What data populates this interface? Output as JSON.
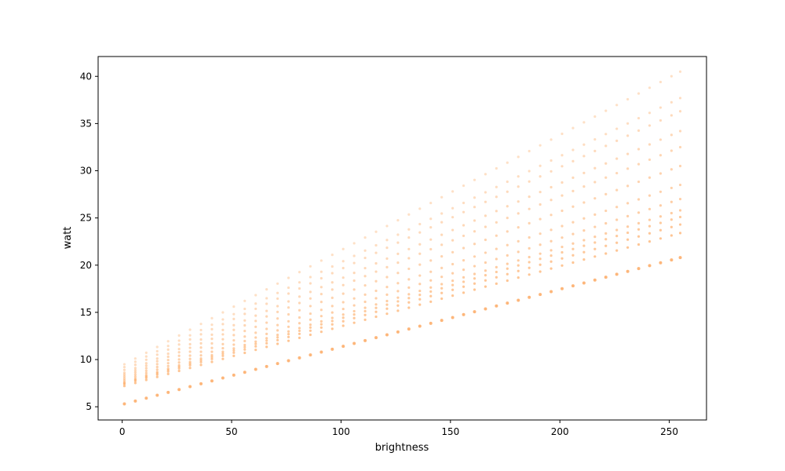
{
  "chart_data": {
    "type": "scatter",
    "title": "",
    "xlabel": "brightness",
    "ylabel": "watt",
    "xlim": [
      -11,
      267
    ],
    "ylim": [
      3.6,
      42.1
    ],
    "x_ticks": [
      0,
      50,
      100,
      150,
      200,
      250
    ],
    "y_ticks": [
      5,
      10,
      15,
      20,
      25,
      30,
      35,
      40
    ],
    "grid": false,
    "legend": "none",
    "color": "#fdae6b",
    "brightness_x": [
      1,
      6,
      11,
      16,
      21,
      26,
      31,
      36,
      41,
      46,
      51,
      56,
      61,
      66,
      71,
      76,
      81,
      86,
      91,
      96,
      101,
      106,
      111,
      116,
      121,
      126,
      131,
      136,
      141,
      146,
      151,
      156,
      161,
      166,
      171,
      176,
      181,
      186,
      191,
      196,
      201,
      206,
      211,
      216,
      221,
      226,
      231,
      236,
      241,
      246,
      251,
      255
    ],
    "lines": [
      {
        "name": "",
        "y_start": 5.3,
        "y_end": 20.8
      },
      {
        "name": "",
        "y_start": 7.2,
        "y_end": 23.4
      },
      {
        "name": "",
        "y_start": 7.4,
        "y_end": 24.3
      },
      {
        "name": "",
        "y_start": 7.5,
        "y_end": 25.1
      },
      {
        "name": "",
        "y_start": 7.6,
        "y_end": 25.8
      },
      {
        "name": "",
        "y_start": 7.8,
        "y_end": 27.0
      },
      {
        "name": "",
        "y_start": 8.0,
        "y_end": 28.5
      },
      {
        "name": "",
        "y_start": 8.2,
        "y_end": 30.5
      },
      {
        "name": "",
        "y_start": 8.4,
        "y_end": 32.5
      },
      {
        "name": "",
        "y_start": 8.6,
        "y_end": 34.2
      },
      {
        "name": "",
        "y_start": 8.9,
        "y_end": 36.3
      },
      {
        "name": "",
        "y_start": 9.2,
        "y_end": 37.7
      },
      {
        "name": "",
        "y_start": 9.5,
        "y_end": 40.5
      }
    ]
  }
}
